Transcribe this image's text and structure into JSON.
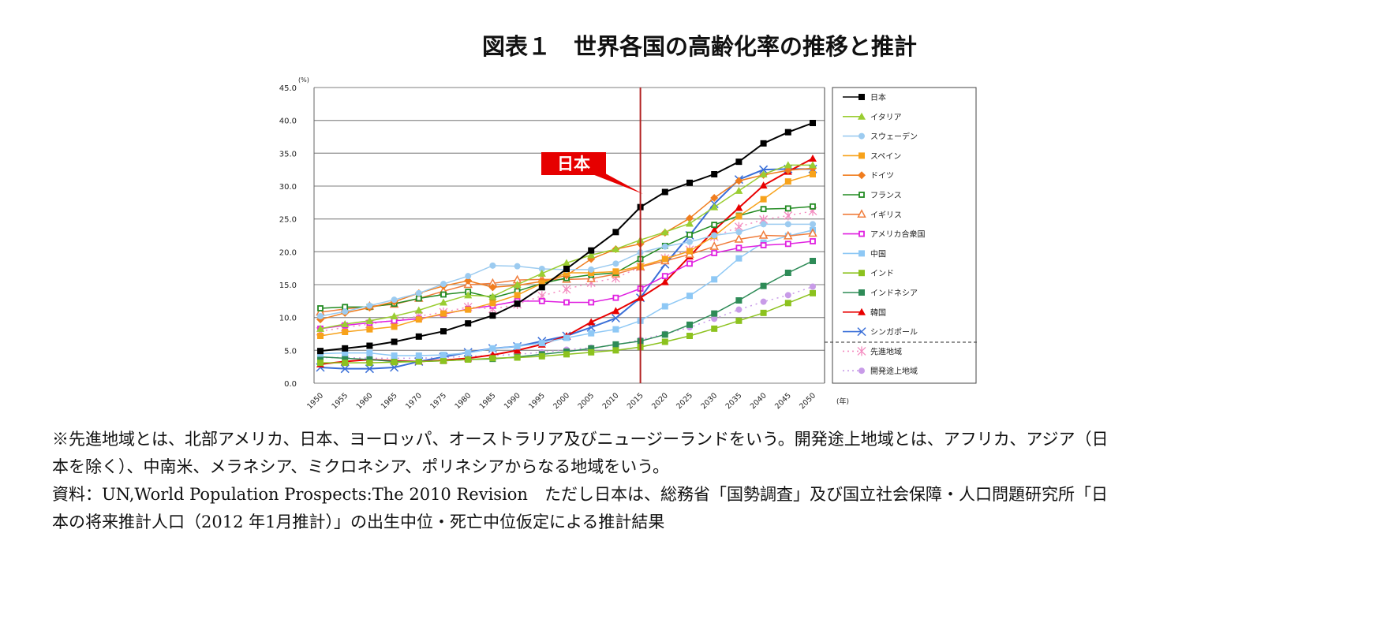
{
  "title": "図表１　世界各国の高齢化率の推移と推計",
  "chart_data": {
    "type": "line",
    "title": "図表１　世界各国の高齢化率の推移と推計",
    "ylabel": "(%)",
    "xlabel": "(年)",
    "ylim": [
      0,
      45
    ],
    "yticks": [
      "0.0",
      "5.0",
      "10.0",
      "15.0",
      "20.0",
      "25.0",
      "30.0",
      "35.0",
      "40.0",
      "45.0"
    ],
    "x": [
      1950,
      1955,
      1960,
      1965,
      1970,
      1975,
      1980,
      1985,
      1990,
      1995,
      2000,
      2005,
      2010,
      2015,
      2020,
      2025,
      2030,
      2035,
      2040,
      2045,
      2050
    ],
    "grid": true,
    "legend": "right",
    "annotation": {
      "label": "日本",
      "marker_year": 2015,
      "color": "#e60000"
    },
    "series": [
      {
        "name": "日本",
        "color": "#000000",
        "marker": "square",
        "values": [
          4.9,
          5.3,
          5.7,
          6.3,
          7.1,
          7.9,
          9.1,
          10.3,
          12.1,
          14.6,
          17.4,
          20.2,
          23.0,
          26.8,
          29.1,
          30.5,
          31.8,
          33.7,
          36.5,
          38.2,
          39.6
        ]
      },
      {
        "name": "イタリア",
        "color": "#9acd32",
        "marker": "triangle",
        "values": [
          8.3,
          9.0,
          9.5,
          10.2,
          11.1,
          12.3,
          13.4,
          13.2,
          15.0,
          16.7,
          18.3,
          19.5,
          20.4,
          21.8,
          23.0,
          24.3,
          26.8,
          29.3,
          31.8,
          33.2,
          33.2
        ]
      },
      {
        "name": "スウェーデン",
        "color": "#9ccbf0",
        "marker": "circle",
        "values": [
          10.2,
          10.9,
          11.8,
          12.7,
          13.7,
          15.1,
          16.3,
          17.9,
          17.8,
          17.4,
          17.3,
          17.3,
          18.2,
          19.9,
          20.8,
          21.5,
          22.5,
          23.0,
          24.2,
          24.2,
          24.2
        ]
      },
      {
        "name": "スペイン",
        "color": "#f7a21b",
        "marker": "square",
        "values": [
          7.2,
          7.8,
          8.2,
          8.6,
          9.7,
          10.6,
          11.2,
          12.2,
          13.4,
          15.2,
          16.8,
          16.8,
          17.0,
          17.8,
          18.9,
          20.1,
          22.4,
          25.4,
          28.0,
          30.7,
          31.8
        ]
      },
      {
        "name": "ドイツ",
        "color": "#f07d1e",
        "marker": "diamond",
        "values": [
          9.7,
          10.7,
          11.5,
          12.4,
          13.7,
          14.8,
          15.6,
          14.6,
          14.9,
          15.5,
          16.4,
          18.9,
          20.4,
          21.2,
          22.9,
          25.1,
          28.2,
          30.8,
          31.7,
          32.4,
          32.7
        ]
      },
      {
        "name": "フランス",
        "color": "#228b22",
        "marker": "open-square",
        "values": [
          11.4,
          11.6,
          11.6,
          12.1,
          12.9,
          13.5,
          13.9,
          13.0,
          14.0,
          15.2,
          16.0,
          16.5,
          16.8,
          18.9,
          20.9,
          22.6,
          24.1,
          25.5,
          26.5,
          26.6,
          26.9
        ]
      },
      {
        "name": "イギリス",
        "color": "#f07d3c",
        "marker": "open-triangle",
        "values": [
          10.8,
          11.3,
          11.7,
          12.0,
          12.9,
          14.0,
          15.0,
          15.2,
          15.7,
          15.8,
          15.8,
          15.9,
          16.6,
          17.7,
          18.6,
          19.6,
          20.8,
          21.9,
          22.5,
          22.4,
          22.8
        ]
      },
      {
        "name": "アメリカ合衆国",
        "color": "#e020e0",
        "marker": "open-square",
        "values": [
          8.3,
          8.8,
          9.2,
          9.5,
          9.8,
          10.5,
          11.3,
          11.8,
          12.5,
          12.5,
          12.3,
          12.3,
          13.0,
          14.4,
          16.3,
          18.2,
          19.8,
          20.6,
          21.0,
          21.2,
          21.6
        ]
      },
      {
        "name": "中国",
        "color": "#8ec8f5",
        "marker": "square",
        "values": [
          4.5,
          4.6,
          4.6,
          4.2,
          4.2,
          4.3,
          4.6,
          5.3,
          5.6,
          6.1,
          6.9,
          7.6,
          8.2,
          9.5,
          11.7,
          13.3,
          15.8,
          19.0,
          21.4,
          22.4,
          23.3
        ]
      },
      {
        "name": "インド",
        "color": "#8cc21e",
        "marker": "square",
        "values": [
          3.1,
          3.1,
          3.1,
          3.2,
          3.3,
          3.4,
          3.6,
          3.8,
          3.9,
          4.1,
          4.4,
          4.7,
          5.0,
          5.5,
          6.3,
          7.2,
          8.3,
          9.5,
          10.7,
          12.2,
          13.7
        ]
      },
      {
        "name": "インドネシア",
        "color": "#2e8b57",
        "marker": "square",
        "values": [
          4.0,
          3.8,
          3.6,
          3.3,
          3.3,
          3.4,
          3.6,
          3.7,
          4.0,
          4.4,
          4.8,
          5.3,
          5.9,
          6.4,
          7.4,
          8.9,
          10.6,
          12.6,
          14.8,
          16.8,
          18.6
        ]
      },
      {
        "name": "韓国",
        "color": "#e80000",
        "marker": "triangle",
        "values": [
          2.9,
          3.3,
          3.6,
          3.4,
          3.3,
          3.5,
          3.8,
          4.3,
          5.0,
          5.9,
          7.2,
          9.3,
          11.0,
          13.0,
          15.4,
          19.3,
          23.3,
          26.7,
          30.1,
          32.2,
          34.2
        ]
      },
      {
        "name": "シンガポール",
        "color": "#3a6fd8",
        "marker": "x",
        "values": [
          2.4,
          2.2,
          2.2,
          2.4,
          3.3,
          4.0,
          4.7,
          5.3,
          5.6,
          6.4,
          7.2,
          8.5,
          9.9,
          13.0,
          18.1,
          22.5,
          27.3,
          31.0,
          32.5,
          32.6,
          32.6
        ]
      },
      {
        "name": "先進地域",
        "color": "#f48cc0",
        "marker": "asterisk",
        "dash": "dotted",
        "values": [
          7.9,
          8.5,
          9.0,
          9.6,
          10.2,
          10.8,
          11.6,
          11.3,
          12.0,
          13.3,
          14.3,
          15.3,
          16.0,
          17.7,
          19.0,
          20.3,
          22.3,
          23.8,
          24.9,
          25.5,
          26.2
        ]
      },
      {
        "name": "開発途上地域",
        "color": "#c89be8",
        "marker": "circle",
        "dash": "dotted",
        "values": [
          3.9,
          3.9,
          3.8,
          3.8,
          3.8,
          3.9,
          4.1,
          4.2,
          4.4,
          4.7,
          5.1,
          5.4,
          5.8,
          6.6,
          7.5,
          8.5,
          9.8,
          11.2,
          12.4,
          13.4,
          14.7
        ]
      }
    ]
  },
  "notes": [
    "※先進地域とは、北部アメリカ、日本、ヨーロッパ、オーストラリア及びニュージーランドをいう。開発途上地域とは、アフリカ、アジア（日",
    "本を除く）、中南米、メラネシア、ミクロネシア、ポリネシアからなる地域をいう。",
    "資料：UN,World Population Prospects:The 2010 Revision　ただし日本は、総務省「国勢調査」及び国立社会保障・人口問題研究所「日",
    "本の将来推計人口（2012 年1月推計）」の出生中位・死亡中位仮定による推計結果"
  ]
}
